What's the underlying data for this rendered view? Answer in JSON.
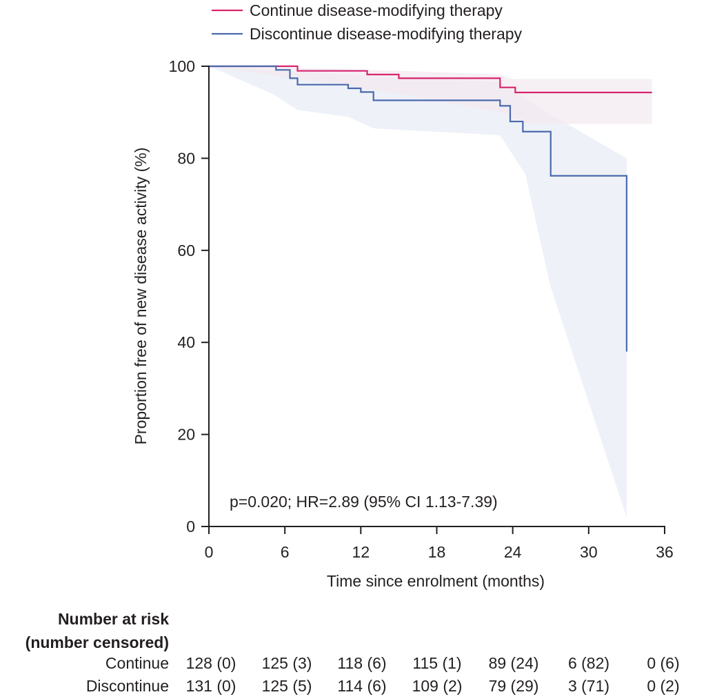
{
  "chart_data": {
    "type": "line",
    "subtype": "kaplan-meier",
    "xlabel": "Time since enrolment (months)",
    "ylabel": "Proportion free of new disease activity (%)",
    "xlim": [
      0,
      36
    ],
    "ylim": [
      0,
      100
    ],
    "xticks": [
      0,
      6,
      12,
      18,
      24,
      30,
      36
    ],
    "yticks": [
      0,
      20,
      40,
      60,
      80,
      100
    ],
    "grid": false,
    "legend_position": "top",
    "annotation": "p=0.020; HR=2.89 (95% CI 1.13-7.39)",
    "series": [
      {
        "name": "Continue disease-modifying therapy",
        "color": "#d6246e",
        "step": [
          [
            0,
            100
          ],
          [
            7,
            99
          ],
          [
            12.5,
            98.2
          ],
          [
            15,
            97.4
          ],
          [
            23,
            95.4
          ],
          [
            24.2,
            94.3
          ],
          [
            35,
            94.3
          ]
        ],
        "ci_upper": [
          [
            0,
            100
          ],
          [
            5,
            99.8
          ],
          [
            10,
            99.4
          ],
          [
            15,
            99
          ],
          [
            23,
            98.2
          ],
          [
            24,
            97.2
          ],
          [
            35,
            97.2
          ]
        ],
        "ci_lower": [
          [
            0,
            100
          ],
          [
            5,
            98
          ],
          [
            10,
            96
          ],
          [
            15,
            94
          ],
          [
            23,
            90
          ],
          [
            25,
            87.5
          ],
          [
            35,
            87.5
          ]
        ]
      },
      {
        "name": "Discontinue disease-modifying therapy",
        "color": "#4a6aad",
        "step": [
          [
            0,
            100
          ],
          [
            5.3,
            99.2
          ],
          [
            6.4,
            97.4
          ],
          [
            7,
            96
          ],
          [
            11,
            95.2
          ],
          [
            12,
            94.4
          ],
          [
            13,
            92.6
          ],
          [
            23,
            91.4
          ],
          [
            23.8,
            88
          ],
          [
            24.8,
            85.8
          ],
          [
            27,
            76.2
          ],
          [
            33,
            38
          ]
        ],
        "ci_upper": [
          [
            0,
            100
          ],
          [
            6,
            99
          ],
          [
            12,
            98
          ],
          [
            20,
            97
          ],
          [
            23,
            96.5
          ],
          [
            27,
            89.5
          ],
          [
            33,
            80
          ]
        ],
        "ci_lower": [
          [
            0,
            100
          ],
          [
            5,
            94
          ],
          [
            7,
            90.5
          ],
          [
            11,
            89
          ],
          [
            13,
            86.5
          ],
          [
            23,
            85
          ],
          [
            25,
            76.5
          ],
          [
            27,
            52
          ],
          [
            33,
            2
          ]
        ]
      }
    ],
    "risk_table": {
      "title": "Number at risk\n(number censored)",
      "times": [
        0,
        6,
        12,
        18,
        24,
        30,
        36
      ],
      "rows": [
        {
          "label": "Continue",
          "cells": [
            "128 (0)",
            "125 (3)",
            "118 (6)",
            "115 (1)",
            "89 (24)",
            "6 (82)",
            "0 (6)"
          ]
        },
        {
          "label": "Discontinue",
          "cells": [
            "131 (0)",
            "125 (5)",
            "114 (6)",
            "109 (2)",
            "79 (29)",
            "3 (71)",
            "0 (2)"
          ]
        }
      ]
    }
  }
}
